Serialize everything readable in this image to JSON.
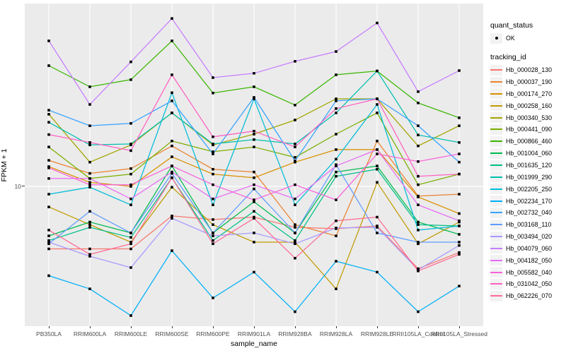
{
  "chart_data": {
    "type": "line",
    "title": "",
    "xlabel": "sample_name",
    "ylabel": "FPKM + 1",
    "y_scale": "log10",
    "y_tick_labels": [
      "10"
    ],
    "y_range_approx": [
      1.9,
      90
    ],
    "grid": "ggplot-gray-panel-white-gridlines",
    "panel_bg": "#EBEBEB",
    "grid_color": "#FFFFFF",
    "point_color": "#000000",
    "point_shape": "square",
    "legend_position": "right",
    "categories": [
      "PB350LA",
      "RRIM600LA",
      "RRIM600LE",
      "RRIM600SE",
      "RRIM600PE",
      "RRIM901LA",
      "RRIM928BA",
      "RRIM928LA",
      "RRIM928LE",
      "RRII105LA_Control",
      "RRII105LA_Stressed"
    ],
    "legend": {
      "quant_status_title": "quant_status",
      "quant_status_items": [
        {
          "label": "OK",
          "symbol": "point"
        }
      ],
      "tracking_id_title": "tracking_id"
    },
    "series": [
      {
        "name": "Hb_000028_130",
        "color": "#F8766D",
        "values": [
          4.7,
          4.7,
          4.7,
          7.0,
          6.7,
          6.9,
          6.1,
          6.0,
          6.2,
          3.7,
          4.5
        ]
      },
      {
        "name": "Hb_000037_190",
        "color": "#EA8331",
        "values": [
          13.7,
          11.7,
          12.4,
          16.3,
          12.3,
          11.9,
          6.3,
          5.5,
          17.3,
          8.9,
          9.1
        ]
      },
      {
        "name": "Hb_000174_270",
        "color": "#D89000",
        "values": [
          12.7,
          10.5,
          10.0,
          14.3,
          11.6,
          11.1,
          13.4,
          15.6,
          15.6,
          8.8,
          7.2
        ]
      },
      {
        "name": "Hb_000258_160",
        "color": "#C09B00",
        "values": [
          7.8,
          6.3,
          5.1,
          9.9,
          6.3,
          5.1,
          5.1,
          2.9,
          10.5,
          5.0,
          6.5
        ]
      },
      {
        "name": "Hb_000340_530",
        "color": "#A3A500",
        "values": [
          23.9,
          13.4,
          16.5,
          24.3,
          16.5,
          18.8,
          22.3,
          28.8,
          28.8,
          16.3,
          20.8
        ]
      },
      {
        "name": "Hb_000441_090",
        "color": "#7CAE00",
        "values": [
          16.1,
          11.0,
          11.6,
          17.3,
          15.2,
          16.1,
          14.2,
          18.8,
          24.3,
          10.2,
          11.6
        ]
      },
      {
        "name": "Hb_000866_460",
        "color": "#39B600",
        "values": [
          43,
          33.3,
          36.3,
          58,
          30.9,
          33.3,
          26.7,
          38.5,
          40.3,
          27.4,
          22.9
        ]
      },
      {
        "name": "Hb_001004_060",
        "color": "#00BB4E",
        "values": [
          5.5,
          6.5,
          5.7,
          12.8,
          5.7,
          8.3,
          5.7,
          11.9,
          12.8,
          6.5,
          5.6
        ]
      },
      {
        "name": "Hb_001635_120",
        "color": "#00C087",
        "values": [
          5.2,
          6.1,
          5.4,
          11.1,
          5.2,
          7.4,
          5.2,
          11.3,
          12.3,
          6.3,
          6.2
        ]
      },
      {
        "name": "Hb_001999_290",
        "color": "#00C0AF",
        "values": [
          21.7,
          16.5,
          16.7,
          24.3,
          16.7,
          17.6,
          16.7,
          24.3,
          40.3,
          18.6,
          17.0
        ]
      },
      {
        "name": "Hb_002205_250",
        "color": "#00BCD8",
        "values": [
          9.1,
          9.9,
          8.0,
          31,
          8.0,
          28.8,
          8.0,
          13.9,
          26.9,
          5.9,
          6.2
        ]
      },
      {
        "name": "Hb_002234_170",
        "color": "#00B0F6",
        "values": [
          3.4,
          2.9,
          2.1,
          4.6,
          2.6,
          3.55,
          2.2,
          4.05,
          3.55,
          2.2,
          3.0
        ]
      },
      {
        "name": "Hb_002732_040",
        "color": "#35A2FF",
        "values": [
          25.1,
          20.8,
          21.4,
          28.1,
          14.8,
          29.3,
          13.6,
          28.1,
          28.8,
          20.8,
          13.4
        ]
      },
      {
        "name": "Hb_003168_110",
        "color": "#619CFF",
        "values": [
          5.0,
          7.4,
          5.7,
          11.7,
          5.7,
          9.7,
          5.7,
          13.0,
          5.7,
          5.1,
          5.1
        ]
      },
      {
        "name": "Hb_003494_020",
        "color": "#A79AFF",
        "values": [
          5.1,
          4.3,
          3.75,
          6.8,
          5.5,
          5.7,
          5.0,
          6.05,
          6.1,
          3.65,
          4.9
        ]
      },
      {
        "name": "Hb_004079_060",
        "color": "#C77CFF",
        "values": [
          58,
          26.9,
          45,
          76,
          37.2,
          39.2,
          45.3,
          51,
          72,
          31.4,
          40.5
        ]
      },
      {
        "name": "Hb_004182_050",
        "color": "#E76BF3",
        "values": [
          11.0,
          11.0,
          8.6,
          11.9,
          8.6,
          10.2,
          8.6,
          12.8,
          15.6,
          8.0,
          6.6
        ]
      },
      {
        "name": "Hb_005582_040",
        "color": "#FA62DB",
        "values": [
          12.5,
          10.2,
          10.2,
          12.8,
          10.2,
          8.5,
          10.2,
          8.5,
          14.8,
          13.5,
          14.8
        ]
      },
      {
        "name": "Hb_031042_050",
        "color": "#FF61C3",
        "values": [
          18.7,
          17.0,
          15.4,
          38.5,
          18.2,
          19.5,
          16.1,
          25.6,
          28.8,
          11.3,
          11.6
        ]
      },
      {
        "name": "Hb_062226_070",
        "color": "#FF6B94",
        "values": [
          5.9,
          4.4,
          5.0,
          11.1,
          5.0,
          6.8,
          4.2,
          6.6,
          6.9,
          3.6,
          4.4
        ]
      }
    ]
  }
}
